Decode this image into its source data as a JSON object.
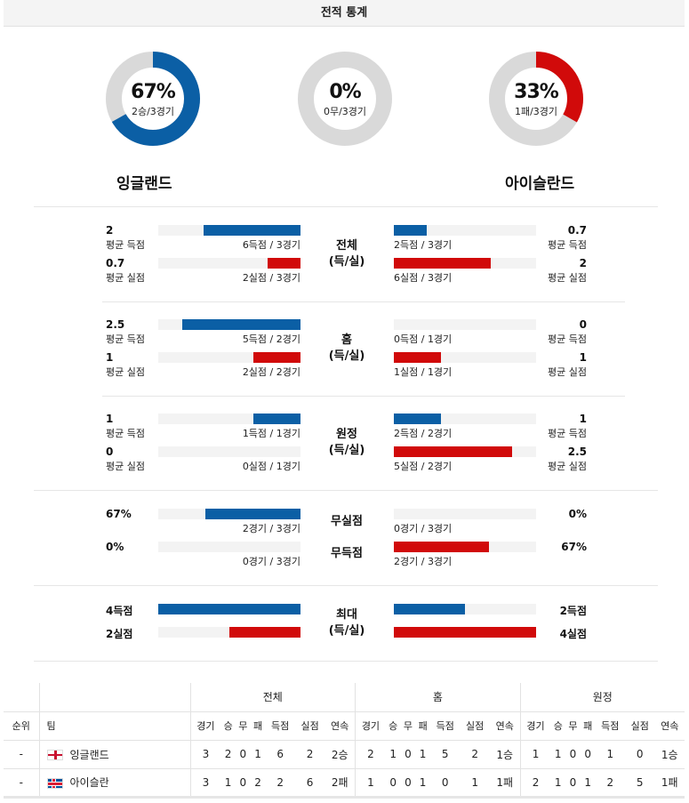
{
  "header": {
    "title": "전적 통계"
  },
  "donuts": [
    {
      "pct": "67%",
      "sub": "2승/3경기",
      "fraction": 0.667,
      "color": "#0b5fa5"
    },
    {
      "pct": "0%",
      "sub": "0무/3경기",
      "fraction": 0,
      "color": "#0b5fa5"
    },
    {
      "pct": "33%",
      "sub": "1패/3경기",
      "fraction": 0.333,
      "color": "#d10a0a"
    }
  ],
  "teams": {
    "home": "잉글랜드",
    "away": "아이슬란드"
  },
  "sections": [
    {
      "category": [
        "전체",
        "(득/실)"
      ],
      "rows": [
        {
          "left_value": "2",
          "left_label": "평균 득점",
          "left_detail": "6득점 / 3경기",
          "left_fill": 0.68,
          "left_color": "blue",
          "right_value": "0.7",
          "right_label": "평균 득점",
          "right_detail": "2득점 / 3경기",
          "right_fill": 0.23,
          "right_color": "blue"
        },
        {
          "left_value": "0.7",
          "left_label": "평균 실점",
          "left_detail": "2실점 / 3경기",
          "left_fill": 0.23,
          "left_color": "red",
          "right_value": "2",
          "right_label": "평균 실점",
          "right_detail": "6실점 / 3경기",
          "right_fill": 0.68,
          "right_color": "red"
        }
      ]
    },
    {
      "category": [
        "홈",
        "(득/실)"
      ],
      "rows": [
        {
          "left_value": "2.5",
          "left_label": "평균 득점",
          "left_detail": "5득점 / 2경기",
          "left_fill": 0.83,
          "left_color": "blue",
          "right_value": "0",
          "right_label": "평균 득점",
          "right_detail": "0득점 / 1경기",
          "right_fill": 0,
          "right_color": "blue"
        },
        {
          "left_value": "1",
          "left_label": "평균 실점",
          "left_detail": "2실점 / 2경기",
          "left_fill": 0.33,
          "left_color": "red",
          "right_value": "1",
          "right_label": "평균 실점",
          "right_detail": "1실점 / 1경기",
          "right_fill": 0.33,
          "right_color": "red"
        }
      ]
    },
    {
      "category": [
        "원정",
        "(득/실)"
      ],
      "rows": [
        {
          "left_value": "1",
          "left_label": "평균 득점",
          "left_detail": "1득점 / 1경기",
          "left_fill": 0.33,
          "left_color": "blue",
          "right_value": "1",
          "right_label": "평균 득점",
          "right_detail": "2득점 / 2경기",
          "right_fill": 0.33,
          "right_color": "blue"
        },
        {
          "left_value": "0",
          "left_label": "평균 실점",
          "left_detail": "0실점 / 1경기",
          "left_fill": 0,
          "left_color": "red",
          "right_value": "2.5",
          "right_label": "평균 실점",
          "right_detail": "5실점 / 2경기",
          "right_fill": 0.83,
          "right_color": "red"
        }
      ]
    }
  ],
  "cleansheet": {
    "rows": [
      {
        "category": "무실점",
        "left_value": "67%",
        "left_detail": "2경기 / 3경기",
        "left_fill": 0.67,
        "left_color": "blue",
        "right_value": "0%",
        "right_detail": "0경기 / 3경기",
        "right_fill": 0,
        "right_color": "blue"
      },
      {
        "category": "무득점",
        "left_value": "0%",
        "left_detail": "0경기 / 3경기",
        "left_fill": 0,
        "left_color": "red",
        "right_value": "67%",
        "right_detail": "2경기 / 3경기",
        "right_fill": 0.67,
        "right_color": "red"
      }
    ]
  },
  "maxstats": {
    "category": [
      "최대",
      "(득/실)"
    ],
    "rows": [
      {
        "left_value": "4득점",
        "left_fill": 1.0,
        "left_color": "blue",
        "right_value": "2득점",
        "right_fill": 0.5,
        "right_color": "blue"
      },
      {
        "left_value": "2실점",
        "left_fill": 0.5,
        "left_color": "red",
        "right_value": "4실점",
        "right_fill": 1.0,
        "right_color": "red"
      }
    ]
  },
  "table": {
    "groups": [
      "전체",
      "홈",
      "원정"
    ],
    "columns": [
      "순위",
      "팀",
      "경기",
      "승",
      "무",
      "패",
      "득점",
      "실점",
      "연속",
      "경기",
      "승",
      "무",
      "패",
      "득점",
      "실점",
      "연속",
      "경기",
      "승",
      "무",
      "패",
      "득점",
      "실점",
      "연속"
    ],
    "rows": [
      {
        "rank": "-",
        "team": "잉글랜드",
        "flag": "england-flag-icon",
        "cells": [
          "3",
          "2",
          "0",
          "1",
          "6",
          "2",
          "2승",
          "2",
          "1",
          "0",
          "1",
          "5",
          "2",
          "1승",
          "1",
          "1",
          "0",
          "0",
          "1",
          "0",
          "1승"
        ]
      },
      {
        "rank": "-",
        "team": "아이슬란",
        "flag": "iceland-flag-icon",
        "cells": [
          "3",
          "1",
          "0",
          "2",
          "2",
          "6",
          "2패",
          "1",
          "0",
          "0",
          "1",
          "0",
          "1",
          "1패",
          "2",
          "1",
          "0",
          "1",
          "2",
          "5",
          "1패"
        ]
      }
    ]
  }
}
